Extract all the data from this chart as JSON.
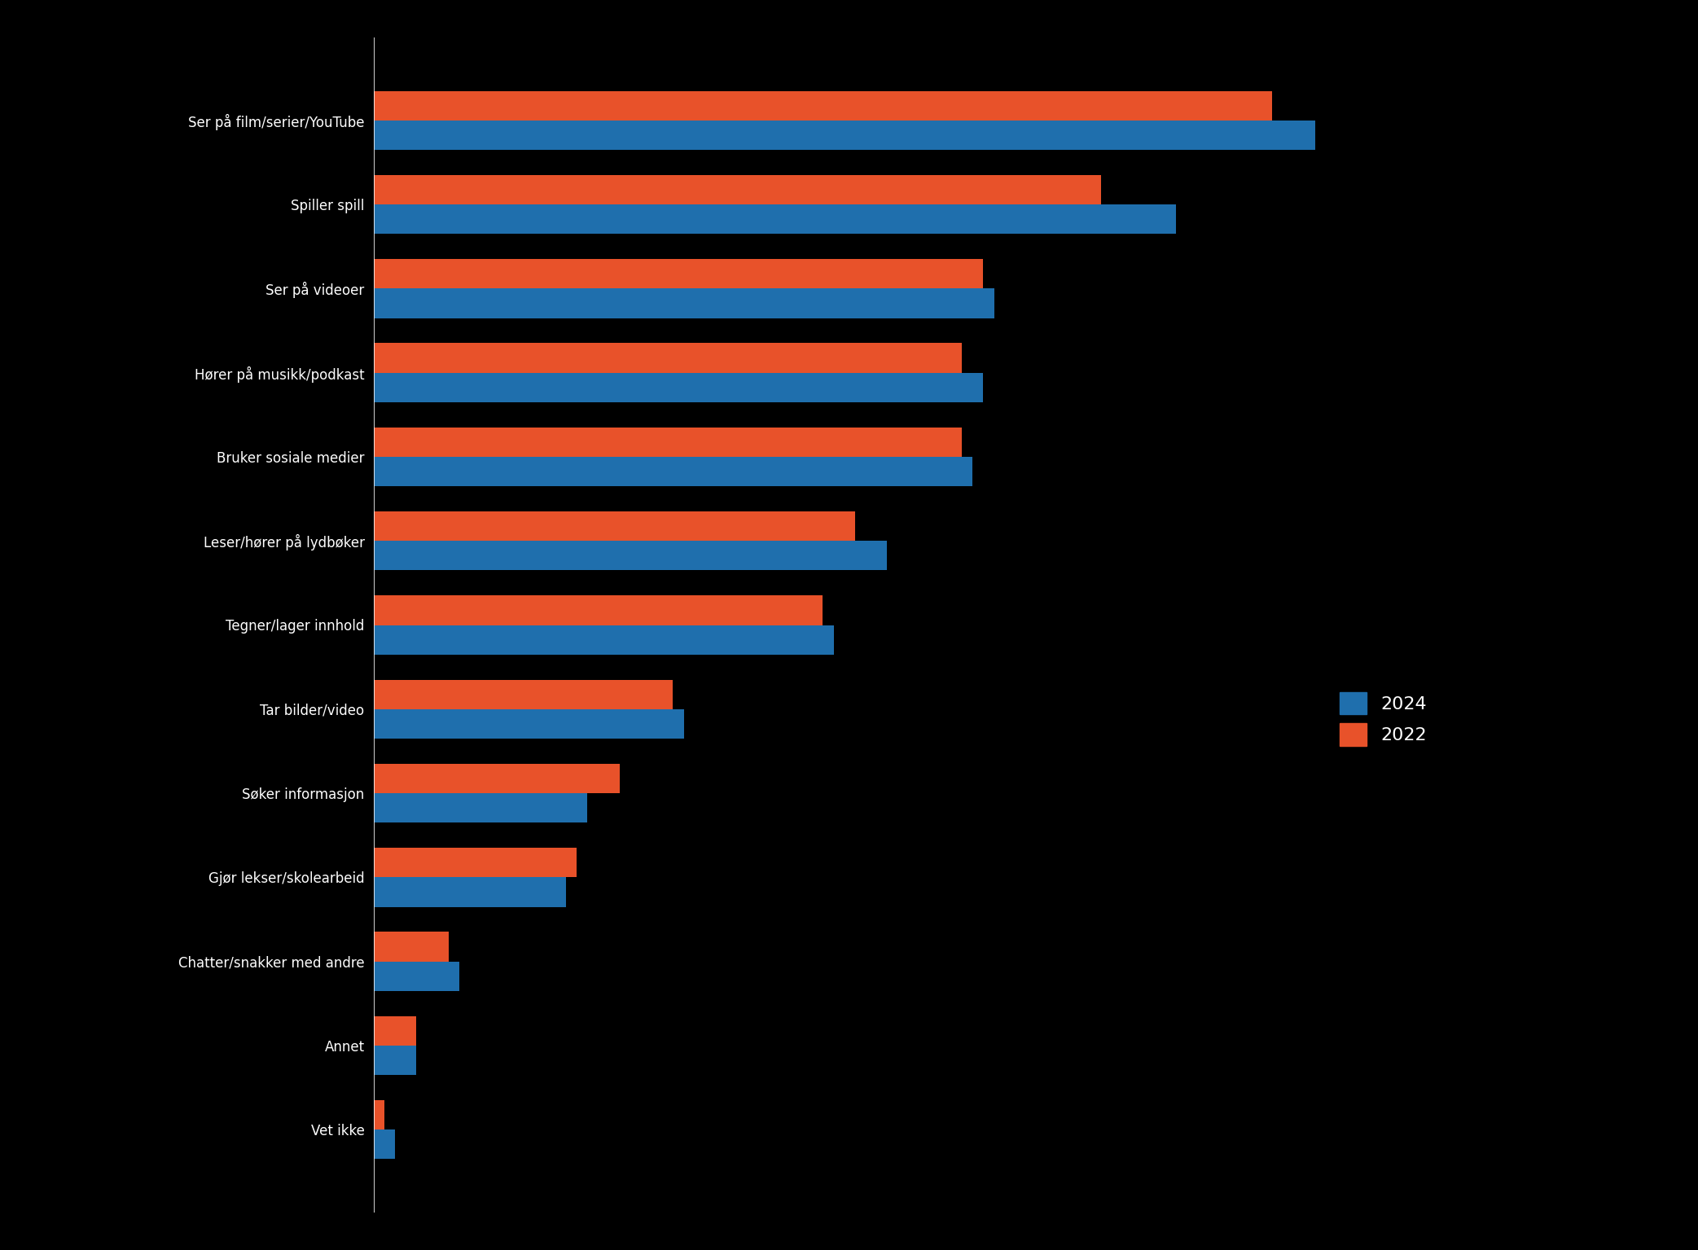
{
  "categories": [
    "Ser på film/serier/YouTube",
    "Spiller spill",
    "Ser på videoer",
    "Hører på musikk/podkast",
    "Bruker sosiale medier",
    "Leser/hører på lydbøker",
    "Tegner/lager innhold",
    "Tar bilder/video",
    "Søker informasjon",
    "Gjør lekser/skolearbeid",
    "Chatter/snakker med andre",
    "Annet",
    "Vet ikke"
  ],
  "values_2024": [
    88,
    75,
    58,
    57,
    56,
    48,
    43,
    29,
    20,
    18,
    8,
    4,
    2
  ],
  "values_2022": [
    84,
    68,
    57,
    55,
    55,
    45,
    42,
    28,
    23,
    19,
    7,
    4,
    1
  ],
  "color_2024": "#1f6fad",
  "color_2022": "#e8522a",
  "text_color": "#ffffff",
  "legend_label_2024": "2024",
  "legend_label_2022": "2022",
  "xlim": [
    0,
    100
  ],
  "bar_height": 0.35,
  "figure_bg": "#000000",
  "axes_bg": "#000000"
}
